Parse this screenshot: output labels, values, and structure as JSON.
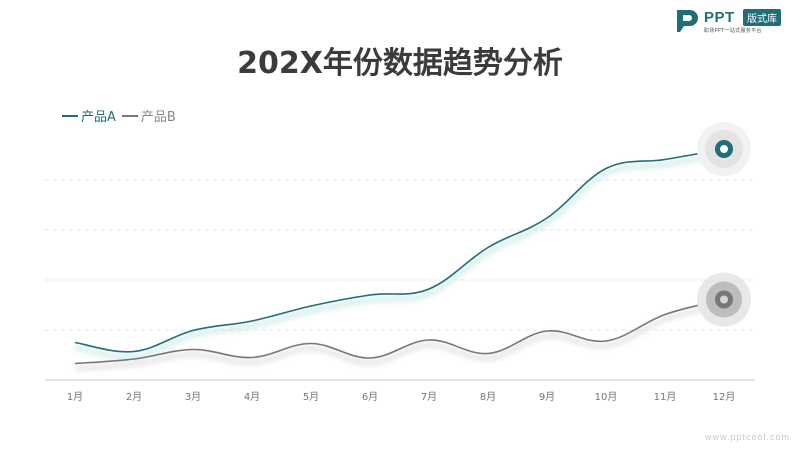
{
  "logo": {
    "brand": "PPT",
    "badge": "版式库",
    "slogan": "职场PPT一站式服务平台",
    "icon": "ppt-logo-icon",
    "color": "#1f6e7a"
  },
  "chart_data": {
    "type": "line",
    "title": "202X年份数据趋势分析",
    "categories": [
      "1月",
      "2月",
      "3月",
      "4月",
      "5月",
      "6月",
      "7月",
      "8月",
      "9月",
      "10月",
      "11月",
      "12月"
    ],
    "series": [
      {
        "name": "产品A",
        "color": "#1f6e7a",
        "values": [
          75,
          57,
          99,
          118,
          148,
          170,
          182,
          265,
          324,
          423,
          441,
          462
        ]
      },
      {
        "name": "产品B",
        "color": "#777777",
        "values": [
          33,
          42,
          61,
          45,
          73,
          44,
          80,
          53,
          98,
          78,
          131,
          161
        ]
      }
    ],
    "ylim": [
      0,
      500
    ],
    "grid": true,
    "legend": "top-left",
    "xlabel": "",
    "ylabel": ""
  },
  "watermark": "www.pptcool.com"
}
